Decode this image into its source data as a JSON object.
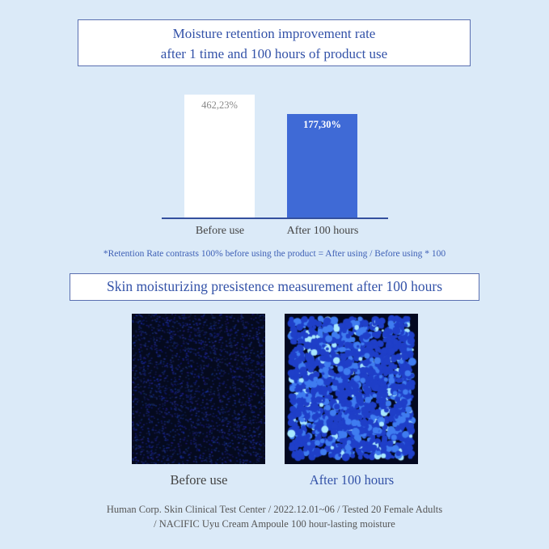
{
  "title": {
    "line1": "Moisture retention improvement rate",
    "line2": "after 1 time and 100 hours of product use"
  },
  "chart_data": {
    "type": "bar",
    "categories": [
      "Before use",
      "After 100 hours"
    ],
    "values": [
      462.23,
      177.3
    ],
    "data_labels": [
      "462,23%",
      "177,30%"
    ],
    "title": "",
    "xlabel": "",
    "ylabel": "",
    "grid": false,
    "colors": [
      "#ffffff",
      "#3f6ad6"
    ],
    "label_colors": [
      "#888888",
      "#ffffff"
    ]
  },
  "note": "*Retention Rate contrasts 100% before using the product = After using / Before using * 100",
  "section2": {
    "title": "Skin moisturizing presistence measurement after 100 hours",
    "images": [
      {
        "caption": "Before use",
        "caption_color": "#444444"
      },
      {
        "caption": "After 100 hours",
        "caption_color": "#3352a8"
      }
    ]
  },
  "footer": {
    "line1": "Human Corp. Skin Clinical Test Center / 2022.12.01~06 / Tested 20 Female Adults",
    "line2": "/ NACIFIC Uyu Cream Ampoule 100 hour-lasting moisture"
  }
}
